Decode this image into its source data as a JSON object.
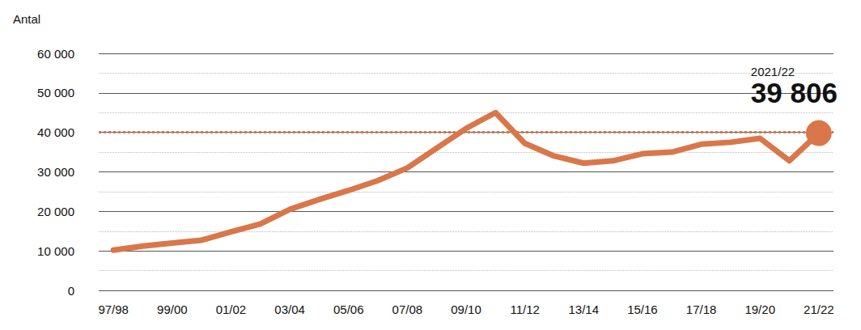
{
  "chart_data": {
    "type": "line",
    "y_label": "Antal",
    "categories": [
      "97/98",
      null,
      "99/00",
      null,
      "01/02",
      null,
      "03/04",
      null,
      "05/06",
      null,
      "07/08",
      null,
      "09/10",
      null,
      "11/12",
      null,
      "13/14",
      null,
      "15/16",
      null,
      "17/18",
      null,
      "19/20",
      null,
      "21/22"
    ],
    "values": [
      10200,
      11200,
      12000,
      12700,
      14800,
      16800,
      20500,
      23000,
      25300,
      27800,
      31000,
      36000,
      41000,
      45000,
      37200,
      34000,
      32200,
      32800,
      34600,
      35000,
      37000,
      37500,
      38500,
      32800,
      39806
    ],
    "color": "#d9774a",
    "ylim": [
      0,
      60000
    ],
    "yticks": [
      0,
      {
        "value": 10000,
        "label": "10 000"
      },
      {
        "value": 20000,
        "label": "20 000"
      },
      {
        "value": 30000,
        "label": "30 000"
      },
      {
        "value": 40000,
        "label": "40 000"
      },
      {
        "value": 50000,
        "label": "50 000"
      },
      {
        "value": 60000,
        "label": "60 000"
      }
    ],
    "grid": true,
    "reference_line": {
      "y": 40000,
      "line_style": "dotted"
    },
    "annotation": {
      "position": 24,
      "title": "2021/22",
      "value": 39806,
      "label": "39 806"
    }
  }
}
